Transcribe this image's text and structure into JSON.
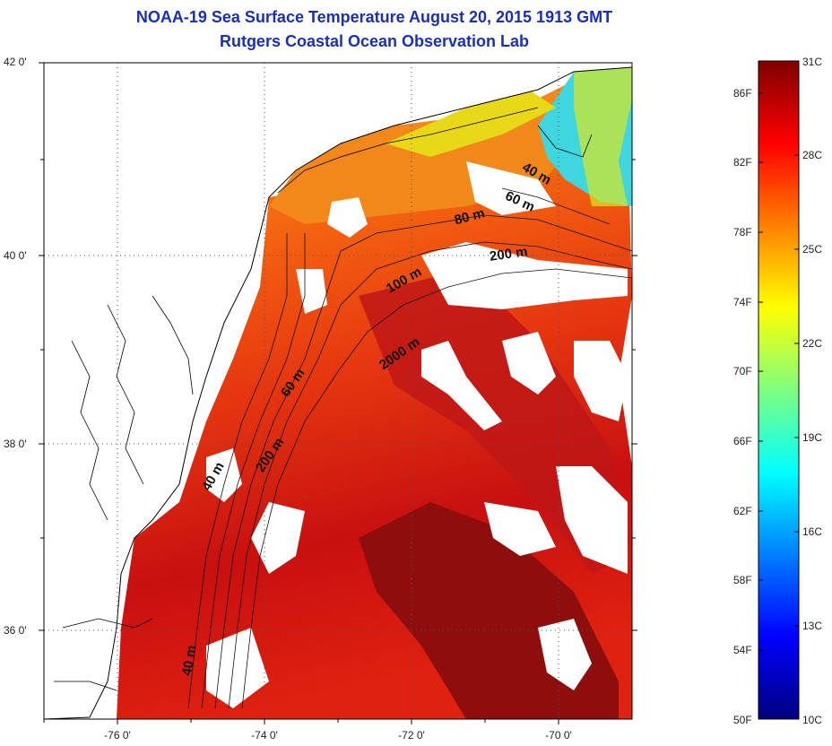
{
  "title": "NOAA-19 Sea Surface Temperature August 20, 2015 1913 GMT",
  "subtitle": "Rutgers Coastal Ocean Observation Lab",
  "map": {
    "lat_labels": [
      "42 0'",
      "40 0'",
      "38 0'",
      "36 0'"
    ],
    "lon_labels": [
      "-76 0'",
      "-74 0'",
      "-72 0'",
      "-70 0'"
    ],
    "lat_range": [
      35.0,
      42.0
    ],
    "lon_range": [
      -77.0,
      -69.0
    ],
    "grid": "dotted",
    "depth_contour_labels": [
      "40 m",
      "60 m",
      "80 m",
      "200 m",
      "100 m",
      "2000 m",
      "60 m",
      "200 m",
      "40 m",
      "40 m"
    ]
  },
  "colorbar": {
    "fahrenheit_labels": [
      "86F",
      "82F",
      "78F",
      "74F",
      "70F",
      "66F",
      "62F",
      "58F",
      "54F",
      "50F"
    ],
    "celsius_labels": [
      "31C",
      "28C",
      "25C",
      "22C",
      "19C",
      "16C",
      "13C",
      "10C"
    ],
    "range_c": [
      10,
      31
    ],
    "colors": [
      "#00007f",
      "#0000ff",
      "#007fff",
      "#00ffff",
      "#7fff7f",
      "#ffff00",
      "#ff7f00",
      "#ff0000",
      "#7f0000"
    ]
  }
}
